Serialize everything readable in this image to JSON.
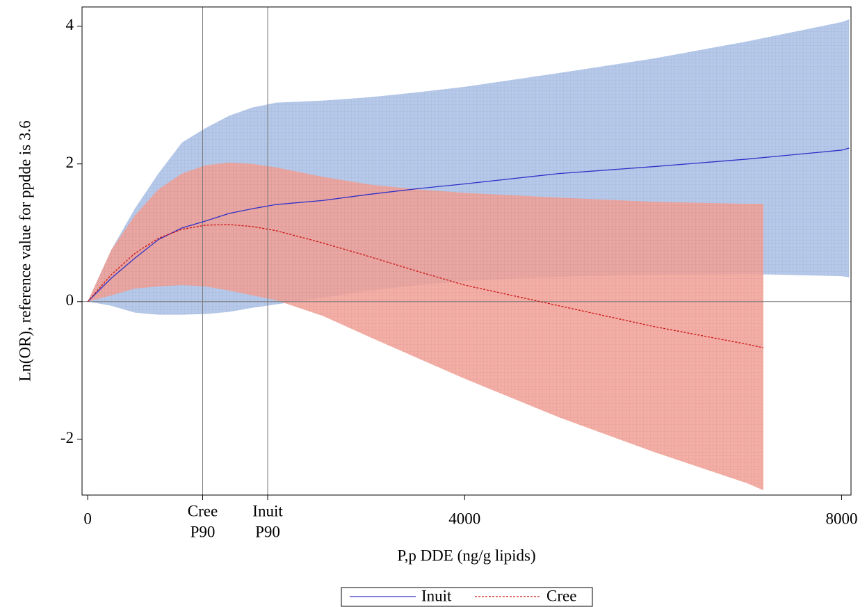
{
  "chart_data": {
    "type": "band-line",
    "x_label": "P,p DDE (ng/g lipids)",
    "y_label": "Ln(OR), reference value for ppdde is 3.6",
    "xlim": [
      -60,
      8100
    ],
    "ylim": [
      -2.81,
      4.28
    ],
    "xticks": [
      0,
      {
        "value": 1220,
        "label": [
          "Cree",
          "P90"
        ]
      },
      {
        "value": 1910,
        "label": [
          "Inuit",
          "P90"
        ]
      },
      4000,
      8000
    ],
    "yticks": [
      -2,
      0,
      2,
      4
    ],
    "hline": 0,
    "legend": "bottom",
    "series": [
      {
        "name": "Inuit",
        "color": "#3030c8",
        "band_color": "#a9bfe6",
        "dashed": false,
        "x": [
          0,
          250,
          500,
          750,
          1000,
          1250,
          1500,
          1750,
          2000,
          2500,
          3000,
          3500,
          4000,
          5000,
          6000,
          7000,
          8000,
          8080
        ],
        "values": [
          0,
          0.34,
          0.63,
          0.9,
          1.07,
          1.17,
          1.28,
          1.35,
          1.41,
          1.47,
          1.56,
          1.64,
          1.71,
          1.86,
          1.96,
          2.07,
          2.2,
          2.23
        ],
        "upper": [
          0,
          0.75,
          1.35,
          1.86,
          2.31,
          2.52,
          2.7,
          2.82,
          2.89,
          2.92,
          2.97,
          3.04,
          3.12,
          3.32,
          3.53,
          3.78,
          4.06,
          4.1
        ],
        "lower": [
          0,
          -0.06,
          -0.16,
          -0.19,
          -0.19,
          -0.18,
          -0.15,
          -0.09,
          -0.04,
          0.06,
          0.16,
          0.24,
          0.3,
          0.36,
          0.39,
          0.4,
          0.37,
          0.35
        ]
      },
      {
        "name": "Cree",
        "color": "#cc1010",
        "band_color": "#f2a095",
        "dashed": true,
        "x": [
          0,
          250,
          500,
          750,
          1000,
          1250,
          1500,
          1750,
          2000,
          2500,
          3000,
          3500,
          4000,
          5000,
          6000,
          7000,
          7170
        ],
        "values": [
          0,
          0.39,
          0.7,
          0.92,
          1.05,
          1.11,
          1.12,
          1.09,
          1.03,
          0.85,
          0.65,
          0.44,
          0.24,
          -0.06,
          -0.36,
          -0.62,
          -0.67
        ],
        "upper": [
          0,
          0.75,
          1.25,
          1.63,
          1.86,
          1.98,
          2.02,
          2.0,
          1.95,
          1.81,
          1.7,
          1.63,
          1.58,
          1.51,
          1.45,
          1.42,
          1.42
        ],
        "lower": [
          0,
          0.09,
          0.19,
          0.22,
          0.24,
          0.22,
          0.16,
          0.09,
          0.02,
          -0.21,
          -0.52,
          -0.82,
          -1.12,
          -1.68,
          -2.18,
          -2.64,
          -2.74
        ]
      }
    ]
  }
}
